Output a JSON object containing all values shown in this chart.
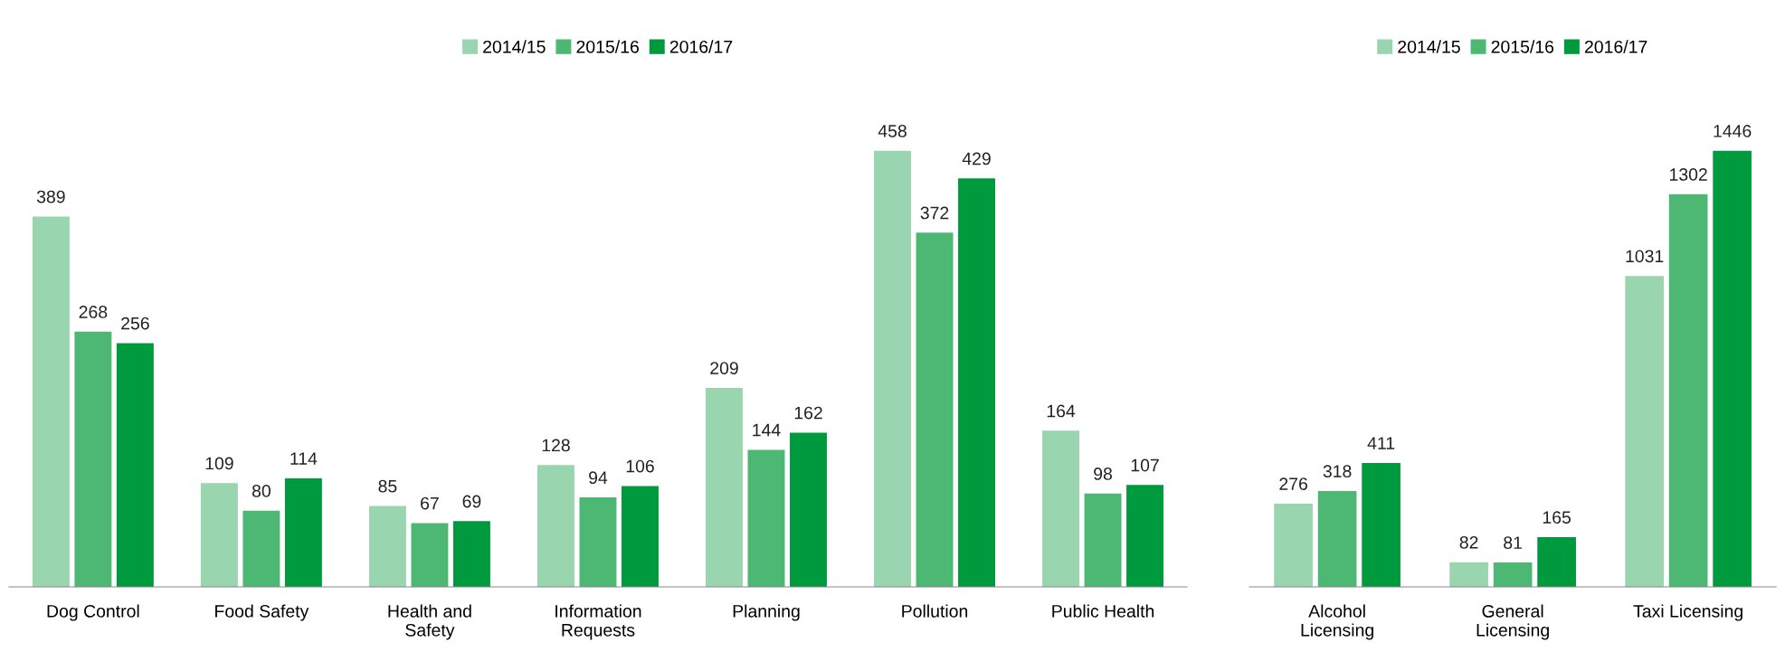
{
  "chart_data": [
    {
      "type": "bar",
      "categories": [
        "Dog Control",
        "Food Safety",
        "Health and\nSafety",
        "Information\nRequests",
        "Planning",
        "Pollution",
        "Public Health"
      ],
      "data_labels": true,
      "legend": "top",
      "series": [
        {
          "name": "2014/15",
          "color": "#99d5ae",
          "values": [
            389,
            109,
            85,
            128,
            209,
            458,
            164
          ]
        },
        {
          "name": "2015/16",
          "color": "#4cb874",
          "values": [
            268,
            80,
            67,
            94,
            144,
            372,
            98
          ]
        },
        {
          "name": "2016/17",
          "color": "#009a3e",
          "values": [
            256,
            114,
            69,
            106,
            162,
            429,
            107
          ]
        }
      ]
    },
    {
      "type": "bar",
      "categories": [
        "Alcohol\nLicensing",
        "General\nLicensing",
        "Taxi Licensing"
      ],
      "data_labels": true,
      "legend": "top",
      "series": [
        {
          "name": "2014/15",
          "color": "#99d5ae",
          "values": [
            276,
            82,
            1031
          ]
        },
        {
          "name": "2015/16",
          "color": "#4cb874",
          "values": [
            318,
            81,
            1302
          ]
        },
        {
          "name": "2016/17",
          "color": "#009a3e",
          "values": [
            411,
            165,
            1446
          ]
        }
      ]
    }
  ]
}
